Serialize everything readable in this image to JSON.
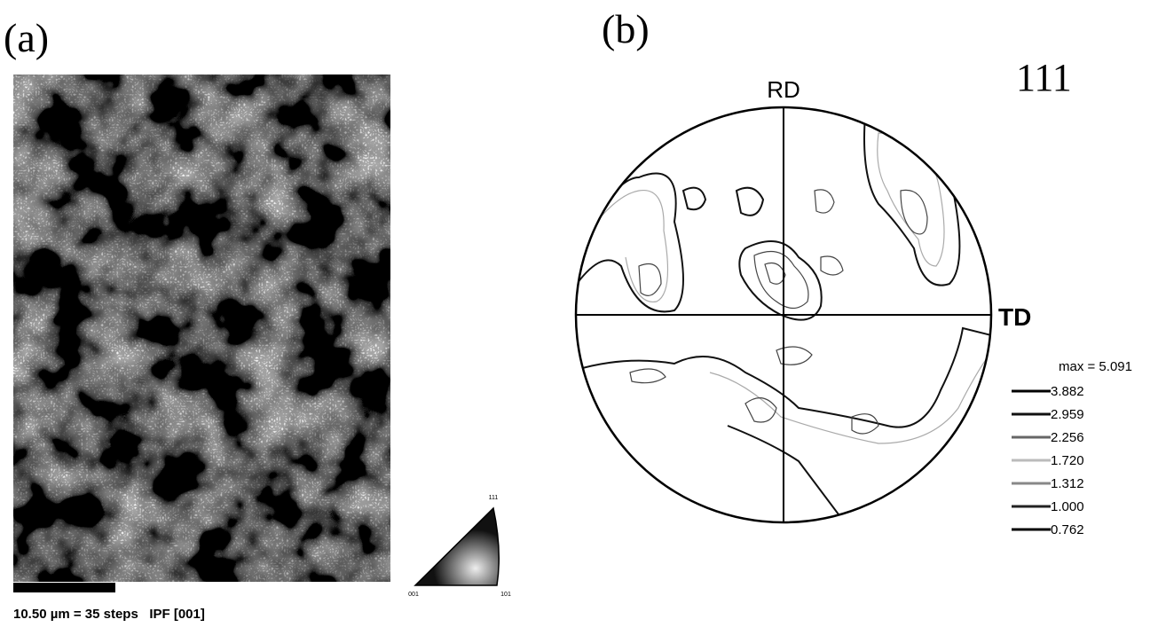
{
  "panel_a": {
    "label": "(a)",
    "scale_caption": "10.50 µm = 35 steps   IPF [001]",
    "triangle": {
      "top": "111",
      "left": "001",
      "right": "101"
    }
  },
  "panel_b": {
    "label": "(b)",
    "rd": "RD",
    "td": "TD",
    "pole": "111",
    "max": "max = 5.091",
    "levels": [
      "3.882",
      "2.959",
      "2.256",
      "1.720",
      "1.312",
      "1.000",
      "0.762"
    ]
  }
}
